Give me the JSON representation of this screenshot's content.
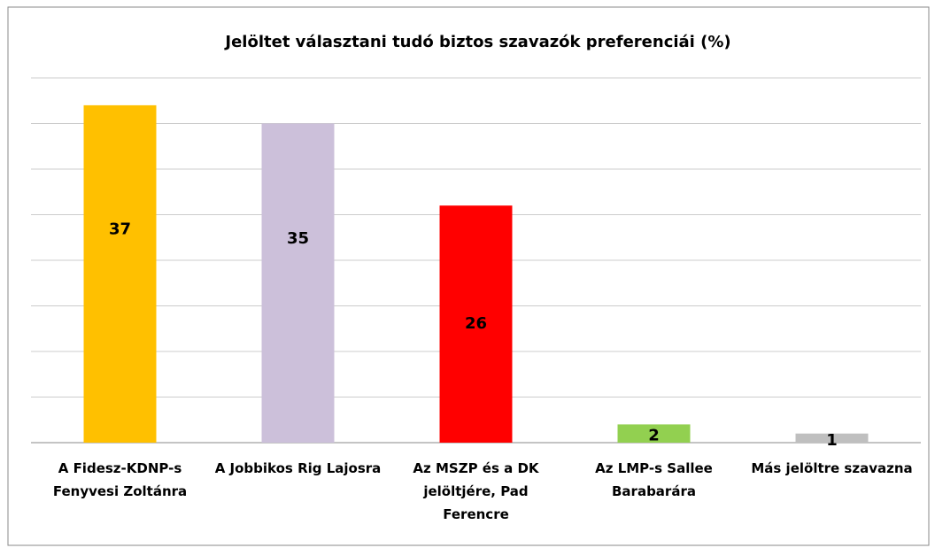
{
  "chart_data": {
    "type": "bar",
    "title": "Jelöltet választani tudó biztos szavazók preferenciái (%)",
    "categories": [
      "A Fidesz-KDNP-s Fenyvesi Zoltánra",
      "A Jobbikos Rig Lajosra",
      "Az MSZP és a DK jelöltjére, Pad Ferencre",
      "Az LMP-s Sallee Barabarára",
      "Más jelöltre szavazna"
    ],
    "values": [
      37,
      35,
      26,
      2,
      1
    ],
    "colors": [
      "#FFC000",
      "#CCC0DA",
      "#FF0000",
      "#92D050",
      "#BFBFBF"
    ],
    "ylim": [
      0,
      40
    ],
    "yticks": [
      0,
      5,
      10,
      15,
      20,
      25,
      30,
      35,
      40
    ],
    "grid": true
  }
}
